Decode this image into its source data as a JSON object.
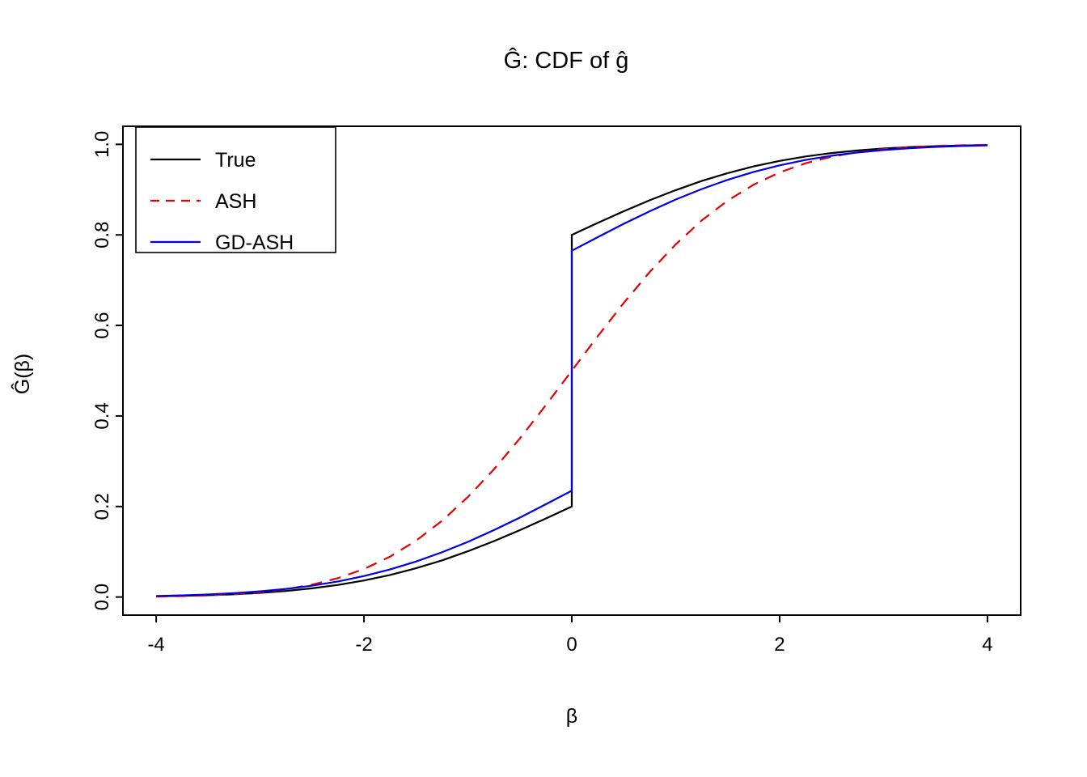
{
  "chart_data": {
    "type": "line",
    "title": "Ĝ: CDF of ĝ",
    "xlabel": "β",
    "ylabel": "Ĝ(β)",
    "xlim": [
      -4,
      4
    ],
    "ylim": [
      0,
      1
    ],
    "grid": false,
    "legend_position": "topleft",
    "x_ticks": [
      -4,
      -2,
      0,
      2,
      4
    ],
    "x_tick_labels": [
      "-4",
      "-2",
      "0",
      "2",
      "4"
    ],
    "y_ticks": [
      0,
      0.2,
      0.4,
      0.6,
      0.8,
      1.0
    ],
    "y_tick_labels": [
      "0.0",
      "0.2",
      "0.4",
      "0.6",
      "0.8",
      "1.0"
    ],
    "series": [
      {
        "name": "True",
        "color": "#000000",
        "style": "solid",
        "x": [
          -4,
          -3.75,
          -3.5,
          -3.25,
          -3,
          -2.75,
          -2.5,
          -2.25,
          -2,
          -1.75,
          -1.5,
          -1.25,
          -1,
          -0.75,
          -0.5,
          -0.25,
          0,
          0,
          0.25,
          0.5,
          0.75,
          1,
          1.25,
          1.5,
          1.75,
          2,
          2.25,
          2.5,
          2.75,
          3,
          3.25,
          3.5,
          3.75,
          4
        ],
        "y": [
          0.0015,
          0.0025,
          0.0039,
          0.006,
          0.0091,
          0.0134,
          0.0191,
          0.0267,
          0.0365,
          0.0486,
          0.0635,
          0.0809,
          0.101,
          0.1234,
          0.1478,
          0.1735,
          0.2,
          0.8,
          0.8265,
          0.8522,
          0.8766,
          0.899,
          0.9191,
          0.9365,
          0.9514,
          0.9635,
          0.9733,
          0.9809,
          0.9866,
          0.9909,
          0.994,
          0.9961,
          0.9975,
          0.9985
        ]
      },
      {
        "name": "ASH",
        "color": "#e60000",
        "style": "dashed",
        "x": [
          -4,
          -3.75,
          -3.5,
          -3.25,
          -3,
          -2.75,
          -2.5,
          -2.25,
          -2,
          -1.75,
          -1.5,
          -1.25,
          -1,
          -0.75,
          -0.5,
          -0.25,
          0,
          0.25,
          0.5,
          0.75,
          1,
          1.25,
          1.5,
          1.75,
          2,
          2.25,
          2.5,
          2.75,
          3,
          3.25,
          3.5,
          3.75,
          4
        ],
        "y": [
          0.001,
          0.002,
          0.0036,
          0.0062,
          0.0105,
          0.0172,
          0.0272,
          0.0417,
          0.062,
          0.0891,
          0.1243,
          0.1682,
          0.2209,
          0.2819,
          0.3503,
          0.4238,
          0.5,
          0.5762,
          0.6497,
          0.7181,
          0.7791,
          0.8318,
          0.8757,
          0.9109,
          0.938,
          0.9583,
          0.9728,
          0.9828,
          0.9895,
          0.9938,
          0.9964,
          0.998,
          0.999
        ]
      },
      {
        "name": "GD-ASH",
        "color": "#0000e6",
        "style": "solid",
        "x": [
          -4,
          -3.75,
          -3.5,
          -3.25,
          -3,
          -2.75,
          -2.5,
          -2.25,
          -2,
          -1.75,
          -1.5,
          -1.25,
          -1,
          -0.75,
          -0.5,
          -0.25,
          0,
          0,
          0.25,
          0.5,
          0.75,
          1,
          1.25,
          1.5,
          1.75,
          2,
          2.25,
          2.5,
          2.75,
          3,
          3.25,
          3.5,
          3.75,
          4
        ],
        "y": [
          0.0023,
          0.0037,
          0.0056,
          0.0085,
          0.0125,
          0.0179,
          0.0251,
          0.0344,
          0.0463,
          0.0608,
          0.0783,
          0.0987,
          0.1219,
          0.1477,
          0.1755,
          0.2049,
          0.235,
          0.765,
          0.7951,
          0.8245,
          0.8523,
          0.8781,
          0.9013,
          0.9217,
          0.9392,
          0.9537,
          0.9656,
          0.9749,
          0.9821,
          0.9875,
          0.9915,
          0.9944,
          0.9963,
          0.9977
        ]
      }
    ]
  }
}
